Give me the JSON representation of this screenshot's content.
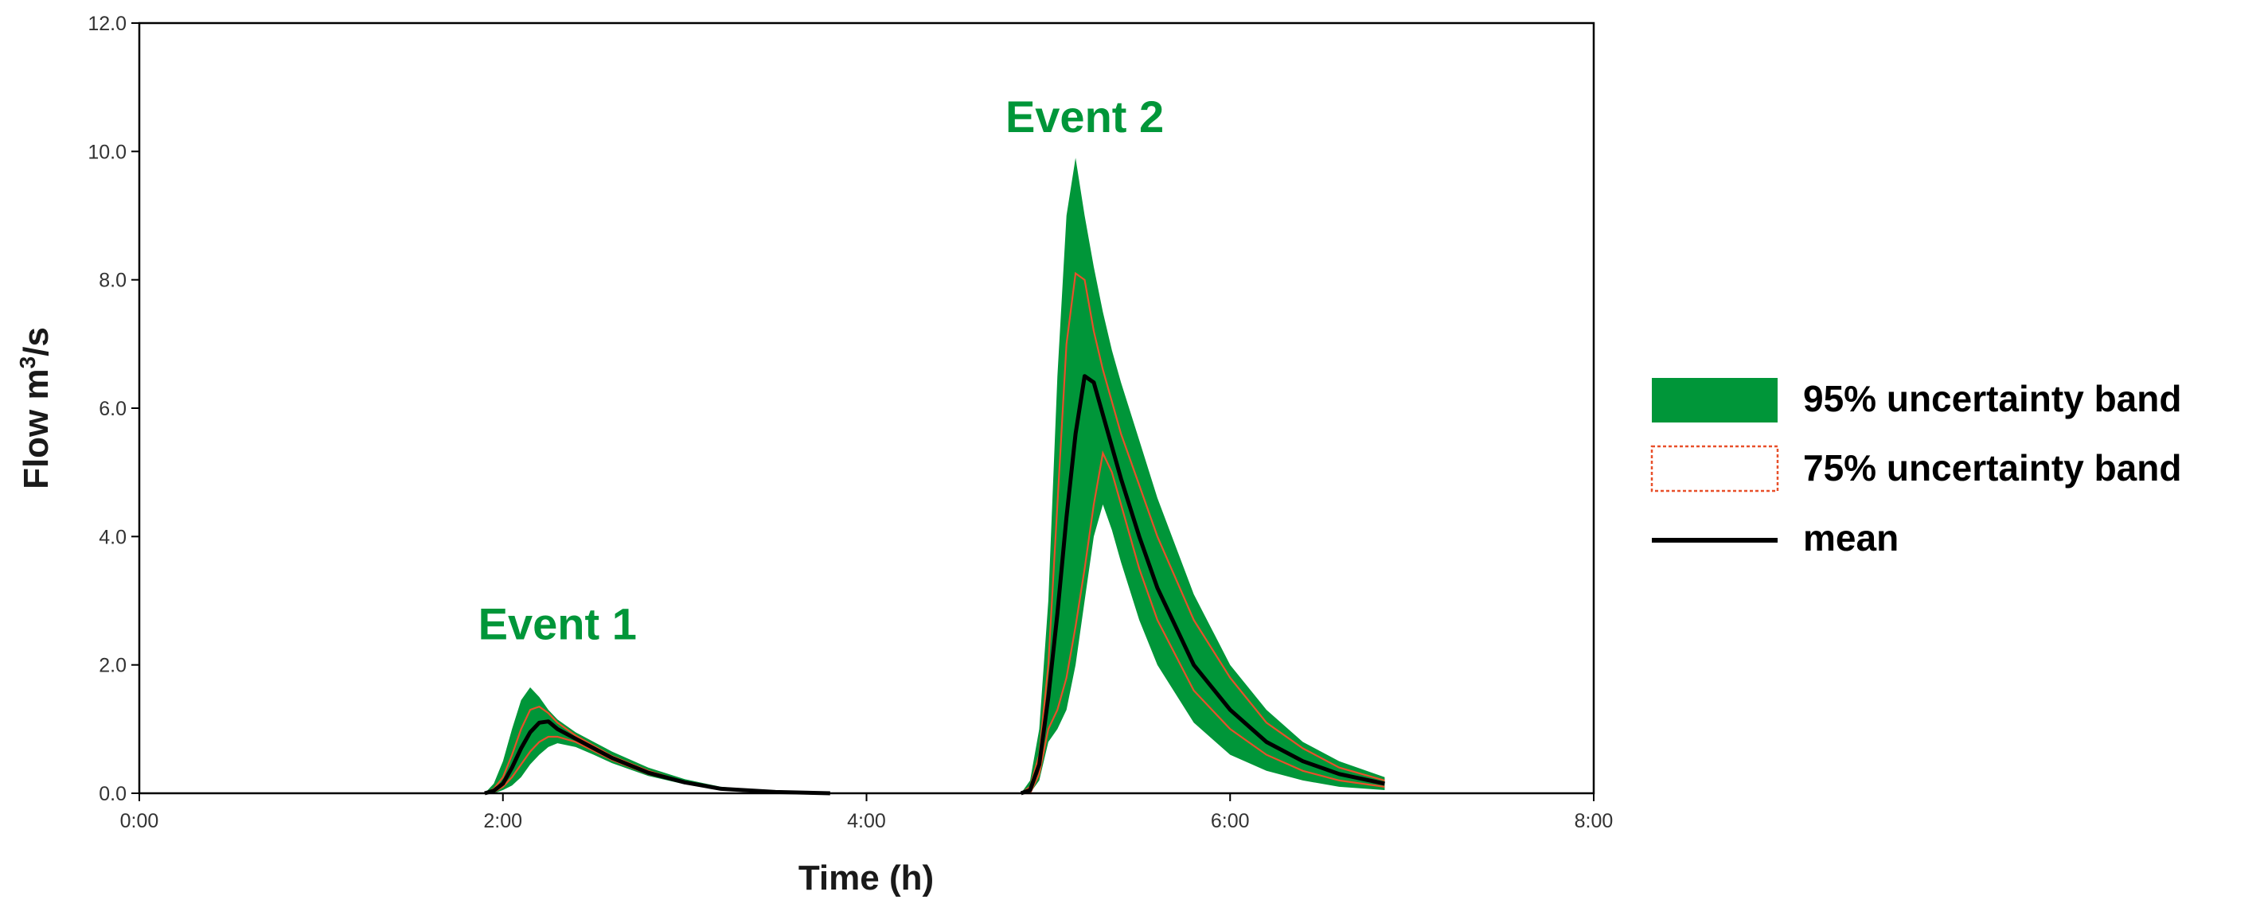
{
  "colors": {
    "band95": "#009639",
    "band75": "#e8502a",
    "mean": "#000000",
    "annotation": "#009639",
    "axis": "#000000"
  },
  "chart_data": {
    "type": "area",
    "xlabel": "Time (h)",
    "ylabel_main": "Flow m",
    "ylabel_sup": "3",
    "ylabel_tail": "/s",
    "xlim": [
      0,
      8
    ],
    "ylim": [
      0,
      12
    ],
    "x_ticks": [
      {
        "value": 0,
        "label": "0:00"
      },
      {
        "value": 2,
        "label": "2:00"
      },
      {
        "value": 4,
        "label": "4:00"
      },
      {
        "value": 6,
        "label": "6:00"
      },
      {
        "value": 8,
        "label": "8:00"
      }
    ],
    "y_ticks": [
      {
        "value": 0,
        "label": "0.0"
      },
      {
        "value": 2,
        "label": "2.0"
      },
      {
        "value": 4,
        "label": "4.0"
      },
      {
        "value": 6,
        "label": "6.0"
      },
      {
        "value": 8,
        "label": "8.0"
      },
      {
        "value": 10,
        "label": "10.0"
      },
      {
        "value": 12,
        "label": "12.0"
      }
    ],
    "grid": false,
    "legend_position": "right",
    "annotations": [
      {
        "text": "Event 1",
        "x": 2.3,
        "y": 2.4
      },
      {
        "text": "Event 2",
        "x": 5.2,
        "y": 10.3
      }
    ],
    "legend": [
      {
        "label": "95% uncertainty band",
        "kind": "band95"
      },
      {
        "label": "75% uncertainty band",
        "kind": "band75"
      },
      {
        "label": "mean",
        "kind": "mean"
      }
    ],
    "events": [
      {
        "name": "Event 1",
        "x": [
          1.9,
          1.95,
          2.0,
          2.05,
          2.1,
          2.15,
          2.2,
          2.25,
          2.3,
          2.4,
          2.5,
          2.6,
          2.8,
          3.0,
          3.2,
          3.5,
          3.8
        ],
        "band95_upper": [
          0.0,
          0.15,
          0.5,
          1.0,
          1.45,
          1.65,
          1.5,
          1.3,
          1.15,
          0.95,
          0.8,
          0.65,
          0.4,
          0.22,
          0.1,
          0.03,
          0.0
        ],
        "band95_lower": [
          0.0,
          0.0,
          0.05,
          0.12,
          0.25,
          0.45,
          0.6,
          0.72,
          0.78,
          0.72,
          0.6,
          0.47,
          0.27,
          0.14,
          0.06,
          0.01,
          0.0
        ],
        "band75_upper": [
          0.0,
          0.07,
          0.25,
          0.6,
          1.0,
          1.3,
          1.35,
          1.25,
          1.1,
          0.9,
          0.74,
          0.58,
          0.35,
          0.18,
          0.08,
          0.02,
          0.0
        ],
        "band75_lower": [
          0.0,
          0.02,
          0.1,
          0.25,
          0.45,
          0.65,
          0.8,
          0.88,
          0.88,
          0.8,
          0.66,
          0.52,
          0.3,
          0.16,
          0.07,
          0.01,
          0.0
        ],
        "mean": [
          0.0,
          0.04,
          0.15,
          0.4,
          0.7,
          0.95,
          1.1,
          1.12,
          1.0,
          0.85,
          0.7,
          0.55,
          0.32,
          0.17,
          0.07,
          0.02,
          0.0
        ]
      },
      {
        "name": "Event 2",
        "x": [
          4.85,
          4.9,
          4.95,
          5.0,
          5.05,
          5.1,
          5.15,
          5.2,
          5.25,
          5.3,
          5.35,
          5.4,
          5.5,
          5.6,
          5.8,
          6.0,
          6.2,
          6.4,
          6.6,
          6.85
        ],
        "band95_upper": [
          0.0,
          0.2,
          1.0,
          3.0,
          6.5,
          9.0,
          9.9,
          9.0,
          8.2,
          7.5,
          6.9,
          6.4,
          5.5,
          4.6,
          3.1,
          2.0,
          1.3,
          0.8,
          0.5,
          0.25
        ],
        "band95_lower": [
          0.0,
          0.0,
          0.2,
          0.8,
          1.0,
          1.3,
          2.0,
          3.0,
          4.0,
          4.5,
          4.1,
          3.6,
          2.7,
          2.0,
          1.1,
          0.6,
          0.35,
          0.2,
          0.1,
          0.05
        ],
        "band75_upper": [
          0.0,
          0.1,
          0.6,
          2.0,
          4.5,
          7.0,
          8.1,
          8.0,
          7.2,
          6.6,
          6.1,
          5.6,
          4.8,
          4.0,
          2.7,
          1.8,
          1.1,
          0.7,
          0.4,
          0.2
        ],
        "band75_lower": [
          0.0,
          0.0,
          0.3,
          1.0,
          1.3,
          1.8,
          2.6,
          3.5,
          4.5,
          5.3,
          5.0,
          4.5,
          3.5,
          2.7,
          1.6,
          1.0,
          0.6,
          0.35,
          0.2,
          0.1
        ],
        "mean": [
          0.0,
          0.05,
          0.45,
          1.5,
          2.8,
          4.3,
          5.6,
          6.5,
          6.4,
          5.9,
          5.4,
          4.9,
          4.0,
          3.2,
          2.0,
          1.3,
          0.8,
          0.5,
          0.3,
          0.15
        ]
      }
    ]
  }
}
